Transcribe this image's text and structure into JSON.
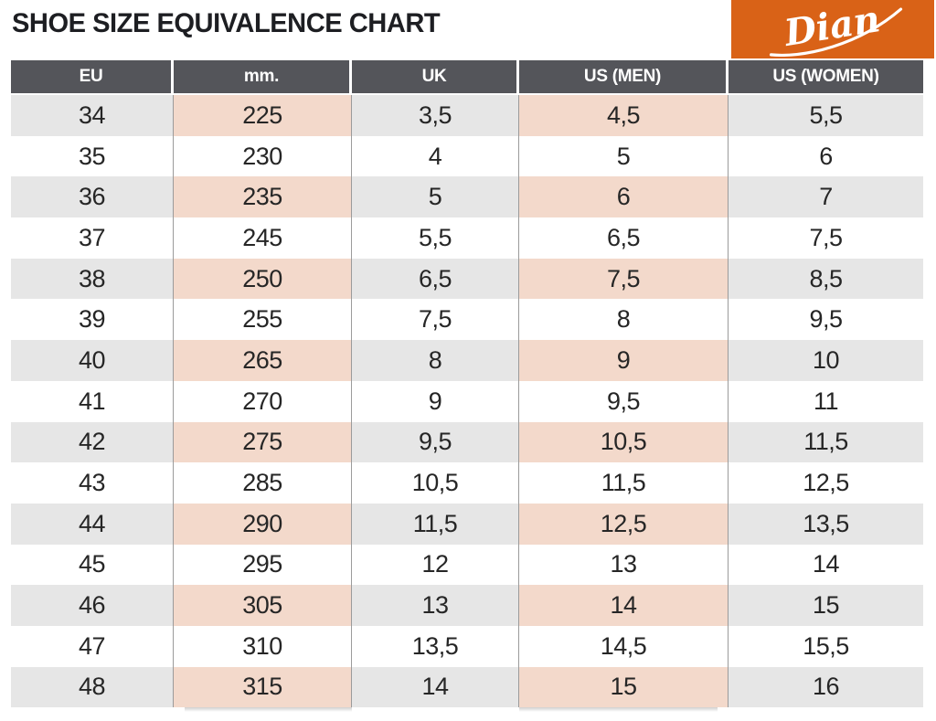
{
  "page": {
    "title": "SHOE SIZE EQUIVALENCE CHART"
  },
  "brand": {
    "name": "Dian",
    "box_color": "#d96217",
    "text_color": "#ffffff"
  },
  "colors": {
    "header_bg": "#54555a",
    "header_text": "#ffffff",
    "row_shade_gray": "#e6e6e6",
    "row_shade_pink": "#f3d9cb",
    "row_white": "#ffffff",
    "divider": "#9b9b9b",
    "cell_text": "#262626",
    "title_text": "#1d1e22"
  },
  "chart_data": {
    "type": "table",
    "title": "SHOE SIZE EQUIVALENCE CHART",
    "columns": [
      "EU",
      "mm.",
      "UK",
      "US (MEN)",
      "US (WOMEN)"
    ],
    "rows": [
      [
        "34",
        "225",
        "3,5",
        "4,5",
        "5,5"
      ],
      [
        "35",
        "230",
        "4",
        "5",
        "6"
      ],
      [
        "36",
        "235",
        "5",
        "6",
        "7"
      ],
      [
        "37",
        "245",
        "5,5",
        "6,5",
        "7,5"
      ],
      [
        "38",
        "250",
        "6,5",
        "7,5",
        "8,5"
      ],
      [
        "39",
        "255",
        "7,5",
        "8",
        "9,5"
      ],
      [
        "40",
        "265",
        "8",
        "9",
        "10"
      ],
      [
        "41",
        "270",
        "9",
        "9,5",
        "11"
      ],
      [
        "42",
        "275",
        "9,5",
        "10,5",
        "11,5"
      ],
      [
        "43",
        "285",
        "10,5",
        "11,5",
        "12,5"
      ],
      [
        "44",
        "290",
        "11,5",
        "12,5",
        "13,5"
      ],
      [
        "45",
        "295",
        "12",
        "13",
        "14"
      ],
      [
        "46",
        "305",
        "13",
        "14",
        "15"
      ],
      [
        "47",
        "310",
        "13,5",
        "14,5",
        "15,5"
      ],
      [
        "48",
        "315",
        "14",
        "15",
        "16"
      ]
    ],
    "shaded_row_indices": [
      0,
      2,
      4,
      6,
      8,
      10,
      12,
      14
    ],
    "pink_column_indices": [
      1,
      3
    ],
    "legend_position": "none",
    "grid": "column-dividers"
  }
}
